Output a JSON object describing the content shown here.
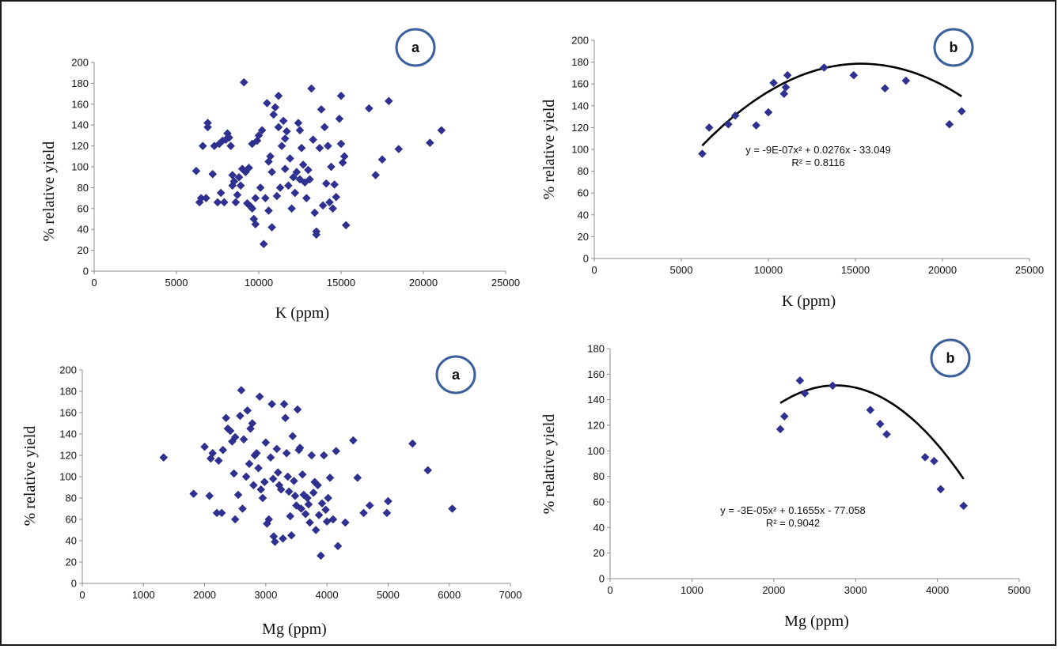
{
  "colors": {
    "marker": "#2e3192",
    "curve": "#000000",
    "badge": "#3a5f9c",
    "axis": "#8c8c8c"
  },
  "chart_data": [
    {
      "type": "scatter",
      "panel_label": "a",
      "xlabel": "K (ppm)",
      "ylabel": "% relative yield",
      "xlim": [
        0,
        25000
      ],
      "ylim": [
        0,
        200
      ],
      "xticks": [
        "0",
        "5000",
        "10000",
        "15000",
        "20000",
        "25000"
      ],
      "yticks": [
        "0",
        "20",
        "40",
        "60",
        "80",
        "100",
        "120",
        "140",
        "160",
        "180",
        "200"
      ],
      "points": [
        [
          6200,
          96
        ],
        [
          6400,
          66
        ],
        [
          6500,
          70
        ],
        [
          6600,
          120
        ],
        [
          6800,
          70
        ],
        [
          6900,
          138
        ],
        [
          6900,
          142
        ],
        [
          7200,
          93
        ],
        [
          7300,
          120
        ],
        [
          7500,
          66
        ],
        [
          7600,
          122
        ],
        [
          7700,
          75
        ],
        [
          7800,
          125
        ],
        [
          7900,
          66
        ],
        [
          8000,
          126
        ],
        [
          8100,
          132
        ],
        [
          8200,
          128
        ],
        [
          8300,
          120
        ],
        [
          8400,
          92
        ],
        [
          8400,
          82
        ],
        [
          8500,
          86
        ],
        [
          8600,
          66
        ],
        [
          8700,
          73
        ],
        [
          8800,
          90
        ],
        [
          8900,
          82
        ],
        [
          9000,
          98
        ],
        [
          9100,
          181
        ],
        [
          9200,
          95
        ],
        [
          9300,
          65
        ],
        [
          9400,
          99
        ],
        [
          9500,
          62
        ],
        [
          9600,
          122
        ],
        [
          9600,
          60
        ],
        [
          9700,
          50
        ],
        [
          9800,
          45
        ],
        [
          9800,
          70
        ],
        [
          9900,
          125
        ],
        [
          10000,
          130
        ],
        [
          10100,
          80
        ],
        [
          10200,
          135
        ],
        [
          10300,
          26
        ],
        [
          10400,
          70
        ],
        [
          10500,
          161
        ],
        [
          10600,
          105
        ],
        [
          10600,
          58
        ],
        [
          10700,
          110
        ],
        [
          10800,
          42
        ],
        [
          10800,
          95
        ],
        [
          10900,
          150
        ],
        [
          11000,
          157
        ],
        [
          11100,
          72
        ],
        [
          11200,
          168
        ],
        [
          11200,
          138
        ],
        [
          11300,
          80
        ],
        [
          11400,
          120
        ],
        [
          11500,
          144
        ],
        [
          11600,
          127
        ],
        [
          11600,
          98
        ],
        [
          11700,
          134
        ],
        [
          11800,
          82
        ],
        [
          11900,
          108
        ],
        [
          12000,
          60
        ],
        [
          12100,
          90
        ],
        [
          12200,
          75
        ],
        [
          12300,
          95
        ],
        [
          12400,
          142
        ],
        [
          12500,
          88
        ],
        [
          12500,
          135
        ],
        [
          12600,
          118
        ],
        [
          12700,
          102
        ],
        [
          12800,
          85
        ],
        [
          12900,
          70
        ],
        [
          13000,
          97
        ],
        [
          13100,
          88
        ],
        [
          13200,
          175
        ],
        [
          13300,
          126
        ],
        [
          13400,
          56
        ],
        [
          13500,
          38
        ],
        [
          13500,
          35
        ],
        [
          13700,
          118
        ],
        [
          13800,
          155
        ],
        [
          13900,
          63
        ],
        [
          14000,
          138
        ],
        [
          14100,
          84
        ],
        [
          14200,
          120
        ],
        [
          14300,
          66
        ],
        [
          14400,
          100
        ],
        [
          14500,
          60
        ],
        [
          14600,
          83
        ],
        [
          14700,
          71
        ],
        [
          14900,
          146
        ],
        [
          15000,
          168
        ],
        [
          15000,
          122
        ],
        [
          15100,
          104
        ],
        [
          15200,
          110
        ],
        [
          15300,
          44
        ],
        [
          16700,
          156
        ],
        [
          17100,
          92
        ],
        [
          17500,
          107
        ],
        [
          17900,
          163
        ],
        [
          18500,
          117
        ],
        [
          20400,
          123
        ],
        [
          21100,
          135
        ]
      ]
    },
    {
      "type": "scatter",
      "panel_label": "b",
      "xlabel": "K (ppm)",
      "ylabel": "% relative yield",
      "xlim": [
        0,
        25000
      ],
      "ylim": [
        0,
        200
      ],
      "xticks": [
        "0",
        "5000",
        "10000",
        "15000",
        "20000",
        "25000"
      ],
      "yticks": [
        "0",
        "20",
        "40",
        "60",
        "80",
        "100",
        "120",
        "140",
        "160",
        "180",
        "200"
      ],
      "points": [
        [
          6200,
          96
        ],
        [
          6600,
          120
        ],
        [
          7700,
          123
        ],
        [
          8100,
          131
        ],
        [
          9300,
          122
        ],
        [
          10000,
          134
        ],
        [
          10300,
          161
        ],
        [
          10900,
          151
        ],
        [
          11000,
          157
        ],
        [
          11100,
          168
        ],
        [
          13200,
          175
        ],
        [
          14900,
          168
        ],
        [
          16700,
          156
        ],
        [
          17900,
          163
        ],
        [
          20400,
          123
        ],
        [
          21100,
          135
        ]
      ],
      "trendline": {
        "type": "polynomial",
        "a": -9e-07,
        "b": 0.0276,
        "c": -33.049,
        "x_from": 6200,
        "x_to": 21100
      },
      "equation": "y = -9E-07x² + 0.0276x - 33.049",
      "r2": "R² = 0.8116"
    },
    {
      "type": "scatter",
      "panel_label": "a",
      "xlabel": "Mg (ppm)",
      "ylabel": "% relative yield",
      "xlim": [
        0,
        7000
      ],
      "ylim": [
        0,
        200
      ],
      "xticks": [
        "0",
        "1000",
        "2000",
        "3000",
        "4000",
        "5000",
        "6000",
        "7000"
      ],
      "yticks": [
        "0",
        "20",
        "40",
        "60",
        "80",
        "100",
        "120",
        "140",
        "160",
        "180",
        "200"
      ],
      "points": [
        [
          1330,
          118
        ],
        [
          1820,
          84
        ],
        [
          2000,
          128
        ],
        [
          2080,
          82
        ],
        [
          2100,
          117
        ],
        [
          2130,
          122
        ],
        [
          2200,
          66
        ],
        [
          2230,
          115
        ],
        [
          2280,
          66
        ],
        [
          2300,
          125
        ],
        [
          2350,
          155
        ],
        [
          2380,
          145
        ],
        [
          2420,
          143
        ],
        [
          2450,
          133
        ],
        [
          2480,
          103
        ],
        [
          2500,
          137
        ],
        [
          2500,
          60
        ],
        [
          2550,
          83
        ],
        [
          2580,
          157
        ],
        [
          2600,
          181
        ],
        [
          2620,
          70
        ],
        [
          2640,
          135
        ],
        [
          2680,
          100
        ],
        [
          2700,
          162
        ],
        [
          2730,
          112
        ],
        [
          2750,
          145
        ],
        [
          2780,
          150
        ],
        [
          2800,
          92
        ],
        [
          2820,
          120
        ],
        [
          2850,
          122
        ],
        [
          2880,
          108
        ],
        [
          2900,
          175
        ],
        [
          2920,
          88
        ],
        [
          2950,
          80
        ],
        [
          2980,
          95
        ],
        [
          3000,
          132
        ],
        [
          3020,
          56
        ],
        [
          3050,
          60
        ],
        [
          3080,
          118
        ],
        [
          3100,
          168
        ],
        [
          3120,
          98
        ],
        [
          3130,
          44
        ],
        [
          3150,
          39
        ],
        [
          3180,
          126
        ],
        [
          3200,
          104
        ],
        [
          3220,
          92
        ],
        [
          3250,
          88
        ],
        [
          3280,
          42
        ],
        [
          3300,
          168
        ],
        [
          3320,
          155
        ],
        [
          3340,
          122
        ],
        [
          3360,
          100
        ],
        [
          3380,
          86
        ],
        [
          3400,
          63
        ],
        [
          3420,
          45
        ],
        [
          3440,
          138
        ],
        [
          3460,
          96
        ],
        [
          3480,
          82
        ],
        [
          3500,
          73
        ],
        [
          3520,
          163
        ],
        [
          3540,
          125
        ],
        [
          3560,
          127
        ],
        [
          3580,
          70
        ],
        [
          3600,
          102
        ],
        [
          3620,
          83
        ],
        [
          3650,
          65
        ],
        [
          3680,
          80
        ],
        [
          3700,
          74
        ],
        [
          3720,
          57
        ],
        [
          3750,
          120
        ],
        [
          3780,
          85
        ],
        [
          3800,
          95
        ],
        [
          3820,
          50
        ],
        [
          3850,
          92
        ],
        [
          3870,
          64
        ],
        [
          3900,
          26
        ],
        [
          3920,
          75
        ],
        [
          3950,
          120
        ],
        [
          3980,
          69
        ],
        [
          4000,
          58
        ],
        [
          4020,
          80
        ],
        [
          4050,
          99
        ],
        [
          4100,
          60
        ],
        [
          4150,
          124
        ],
        [
          4180,
          35
        ],
        [
          4300,
          57
        ],
        [
          4430,
          134
        ],
        [
          4500,
          99
        ],
        [
          4600,
          66
        ],
        [
          4700,
          73
        ],
        [
          4980,
          66
        ],
        [
          5000,
          77
        ],
        [
          5400,
          131
        ],
        [
          5650,
          106
        ],
        [
          6050,
          70
        ]
      ]
    },
    {
      "type": "scatter",
      "panel_label": "b",
      "xlabel": "Mg (ppm)",
      "ylabel": "% relative yield",
      "xlim": [
        0,
        5000
      ],
      "ylim": [
        0,
        180
      ],
      "xticks": [
        "0",
        "1000",
        "2000",
        "3000",
        "4000",
        "5000"
      ],
      "yticks": [
        "0",
        "20",
        "40",
        "60",
        "80",
        "100",
        "120",
        "140",
        "160",
        "180"
      ],
      "points": [
        [
          2080,
          117
        ],
        [
          2130,
          127
        ],
        [
          2320,
          155
        ],
        [
          2380,
          145
        ],
        [
          2720,
          151
        ],
        [
          3180,
          132
        ],
        [
          3300,
          121
        ],
        [
          3380,
          113
        ],
        [
          3850,
          95
        ],
        [
          3960,
          92
        ],
        [
          4040,
          70
        ],
        [
          4320,
          57
        ]
      ],
      "trendline": {
        "type": "polynomial",
        "a": -3e-05,
        "b": 0.1655,
        "c": -77.058,
        "x_from": 2080,
        "x_to": 4320
      },
      "equation": "y = -3E-05x² + 0.1655x - 77.058",
      "r2": "R² = 0.9042"
    }
  ]
}
